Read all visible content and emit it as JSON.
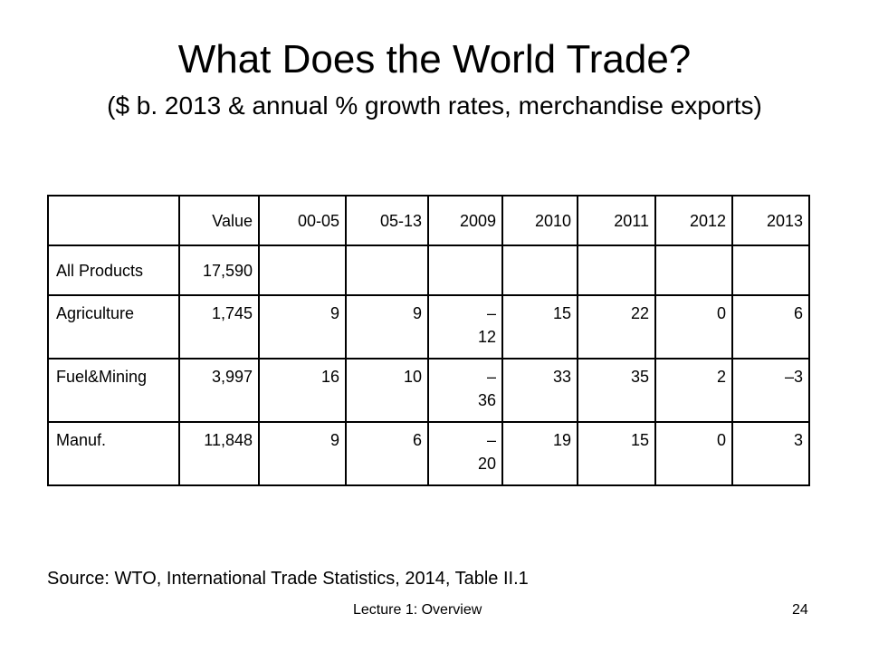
{
  "title": "What Does the World Trade?",
  "subtitle": "($ b. 2013 & annual % growth rates, merchandise exports)",
  "table": {
    "headers": [
      "",
      "Value",
      "00-05",
      "05-13",
      "2009",
      "2010",
      "2011",
      "2012",
      "2013"
    ],
    "rows": [
      [
        "All Products",
        "17,590",
        "",
        "",
        "",
        "",
        "",
        "",
        ""
      ],
      [
        "Agriculture",
        "1,745",
        "9",
        "9",
        "–\n12",
        "15",
        "22",
        "0",
        "6"
      ],
      [
        "Fuel&Mining",
        "3,997",
        "16",
        "10",
        "–\n36",
        "33",
        "35",
        "2",
        "–3"
      ],
      [
        "Manuf.",
        "11,848",
        "9",
        "6",
        "–\n20",
        "19",
        "15",
        "0",
        "3"
      ]
    ]
  },
  "source": "Source:  WTO, International Trade Statistics, 2014, Table II.1",
  "footer": {
    "left": "Lecture 1:  Overview",
    "right": "24"
  }
}
